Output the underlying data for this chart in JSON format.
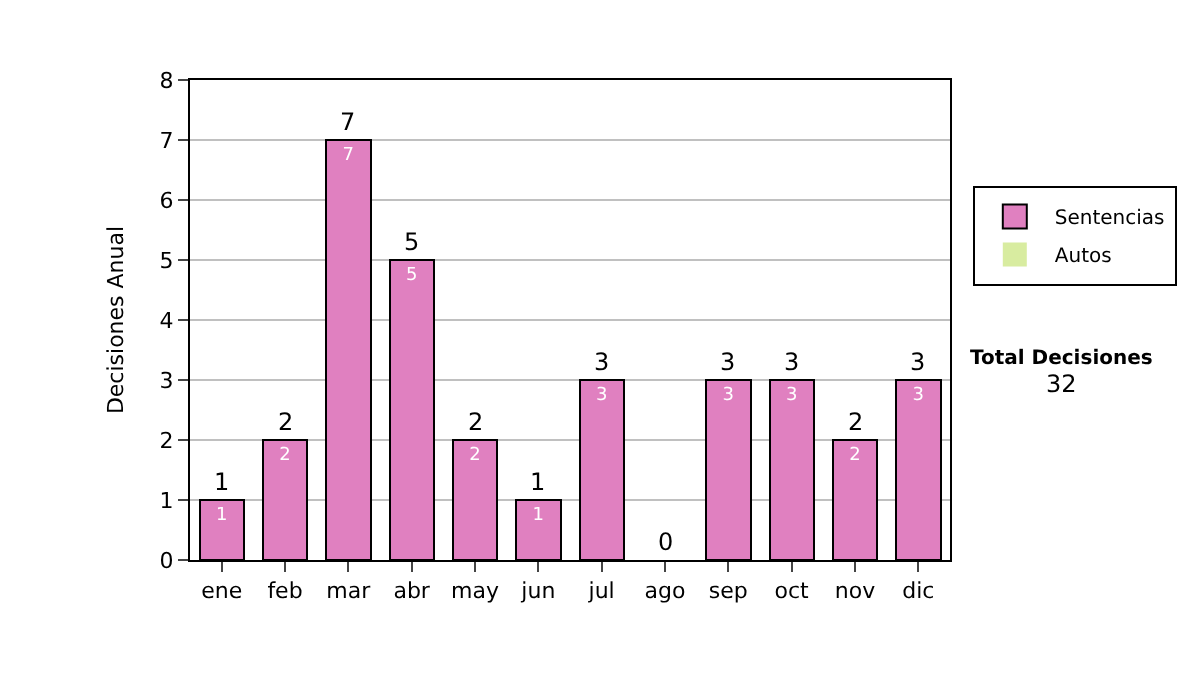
{
  "chart_data": {
    "type": "bar",
    "stacked": true,
    "ylabel": "Decisiones Anual",
    "categories": [
      "ene",
      "feb",
      "mar",
      "abr",
      "may",
      "jun",
      "jul",
      "ago",
      "sep",
      "oct",
      "nov",
      "dic"
    ],
    "series": [
      {
        "name": "Sentencias",
        "color": "#e080c0",
        "values": [
          1,
          2,
          7,
          5,
          2,
          1,
          3,
          0,
          3,
          3,
          2,
          3
        ],
        "value_labels": [
          "1",
          "2",
          "7",
          "5",
          "2",
          "1",
          "3",
          null,
          "3",
          "3",
          "2",
          "3"
        ]
      },
      {
        "name": "Autos",
        "color": "#d8eca0",
        "values": [
          0,
          0,
          0,
          0,
          0,
          0,
          0,
          0,
          0,
          0,
          0,
          0
        ]
      }
    ],
    "totals": [
      "1",
      "2",
      "7",
      "5",
      "2",
      "1",
      "3",
      "0",
      "3",
      "3",
      "2",
      "3"
    ],
    "ylim": [
      0,
      8
    ],
    "yticks": [
      0,
      1,
      2,
      3,
      4,
      5,
      6,
      7,
      8
    ],
    "grid": "y",
    "legend": "right",
    "annotations": [
      "Total Decisiones",
      "32"
    ]
  }
}
